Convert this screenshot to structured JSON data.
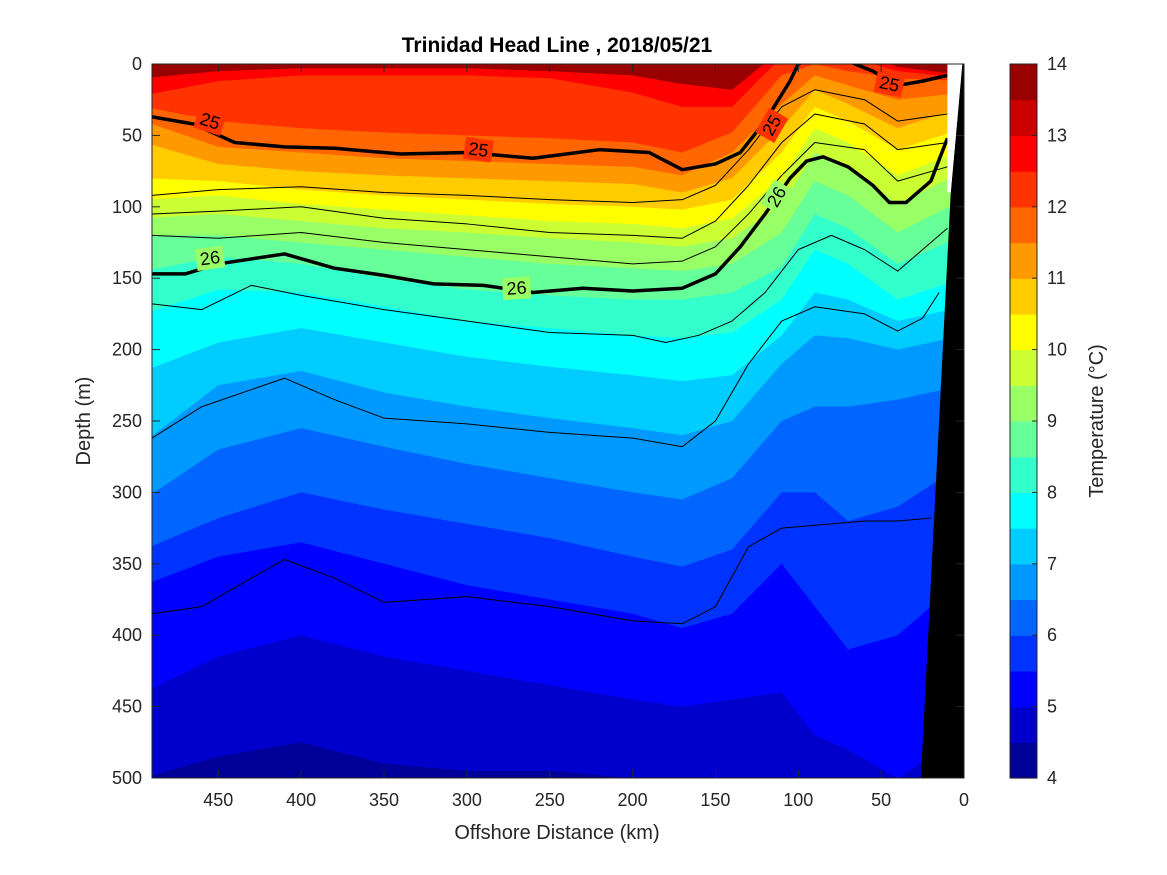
{
  "chart_data": {
    "type": "contour",
    "title": "Trinidad Head Line , 2018/05/21",
    "xlabel": "Offshore Distance (km)",
    "ylabel": "Depth (m)",
    "xlim": [
      490,
      0
    ],
    "ylim": [
      0,
      500
    ],
    "x_reversed": true,
    "y_reversed": true,
    "xticks": [
      "450",
      "400",
      "350",
      "300",
      "250",
      "200",
      "150",
      "100",
      "50",
      "0"
    ],
    "yticks": [
      "0",
      "50",
      "100",
      "150",
      "200",
      "250",
      "300",
      "350",
      "400",
      "450",
      "500"
    ],
    "colorbar": {
      "label": "Temperature (°C)",
      "ticks": [
        "4",
        "5",
        "6",
        "7",
        "8",
        "9",
        "10",
        "11",
        "12",
        "13",
        "14"
      ],
      "range": [
        4,
        14
      ],
      "colormap": "jet"
    },
    "isotherm_depths": {
      "x": [
        490,
        450,
        400,
        350,
        300,
        250,
        200,
        170,
        140,
        110,
        90,
        70,
        40,
        15
      ],
      "13.0": [
        10,
        5,
        3,
        3,
        3,
        5,
        8,
        14,
        18,
        -10,
        -10,
        -10,
        2,
        8
      ],
      "12.5": [
        22,
        12,
        8,
        8,
        8,
        10,
        20,
        30,
        30,
        -5,
        -8,
        -5,
        5,
        10
      ],
      "12.0": [
        30,
        40,
        45,
        48,
        50,
        52,
        55,
        62,
        48,
        8,
        0,
        5,
        10,
        12
      ],
      "11.5": [
        40,
        58,
        62,
        66,
        68,
        70,
        72,
        78,
        62,
        28,
        8,
        15,
        25,
        20
      ],
      "11.0": [
        55,
        70,
        75,
        78,
        80,
        82,
        84,
        90,
        80,
        45,
        18,
        28,
        45,
        30
      ],
      "10.5": [
        80,
        82,
        88,
        92,
        95,
        98,
        100,
        102,
        95,
        62,
        30,
        40,
        60,
        45
      ],
      "10.0": [
        95,
        92,
        98,
        102,
        106,
        110,
        112,
        115,
        108,
        80,
        45,
        55,
        78,
        60
      ],
      "9.5": [
        108,
        105,
        110,
        115,
        118,
        122,
        125,
        128,
        122,
        98,
        62,
        72,
        98,
        75
      ],
      "9.0": [
        120,
        120,
        125,
        130,
        135,
        140,
        143,
        145,
        140,
        118,
        82,
        92,
        118,
        95
      ],
      "8.5": [
        145,
        135,
        140,
        150,
        158,
        162,
        165,
        165,
        160,
        142,
        105,
        115,
        140,
        120
      ],
      "8.0": [
        175,
        158,
        160,
        170,
        180,
        185,
        190,
        192,
        188,
        165,
        130,
        140,
        165,
        150
      ],
      "7.5": [
        215,
        195,
        185,
        195,
        205,
        212,
        218,
        222,
        218,
        190,
        160,
        165,
        180,
        170
      ],
      "7.0": [
        265,
        225,
        215,
        230,
        240,
        248,
        255,
        260,
        250,
        210,
        190,
        192,
        200,
        190
      ],
      "6.5": [
        305,
        270,
        255,
        268,
        280,
        290,
        300,
        305,
        290,
        250,
        240,
        240,
        235,
        225
      ],
      "6.0": [
        340,
        318,
        300,
        312,
        322,
        332,
        345,
        352,
        340,
        300,
        300,
        320,
        310,
        280
      ],
      "5.5": [
        365,
        345,
        335,
        350,
        365,
        375,
        385,
        395,
        385,
        350,
        380,
        410,
        400,
        360
      ],
      "5.0": [
        440,
        415,
        400,
        415,
        425,
        435,
        445,
        450,
        445,
        440,
        470,
        480,
        500,
        470
      ],
      "4.5": [
        500,
        485,
        475,
        490,
        495,
        495,
        500,
        505,
        505,
        505,
        505,
        505,
        505,
        505
      ]
    },
    "density_contours": {
      "lines": [
        {
          "label": "25",
          "bold": true,
          "x": [
            490,
            465,
            440,
            410,
            380,
            340,
            300,
            260,
            220,
            190,
            170,
            150,
            135,
            120,
            105,
            100,
            90,
            70,
            55,
            40,
            25,
            10
          ],
          "y": [
            37,
            42,
            55,
            58,
            59,
            63,
            62,
            66,
            60,
            62,
            74,
            70,
            62,
            40,
            12,
            0,
            -5,
            -2,
            5,
            15,
            12,
            8
          ]
        },
        {
          "label": "26",
          "bold": true,
          "x": [
            490,
            470,
            450,
            410,
            380,
            350,
            320,
            290,
            260,
            230,
            200,
            170,
            150,
            135,
            120,
            105,
            95,
            85,
            70,
            55,
            45,
            35,
            20,
            10
          ],
          "y": [
            147,
            147,
            140,
            133,
            143,
            148,
            154,
            155,
            160,
            157,
            159,
            157,
            147,
            128,
            105,
            80,
            68,
            65,
            72,
            85,
            97,
            97,
            82,
            52
          ]
        },
        {
          "label": "",
          "bold": false,
          "x": [
            490,
            450,
            400,
            350,
            300,
            250,
            200,
            170,
            150,
            130,
            110,
            90,
            60,
            40,
            10
          ],
          "y": [
            92,
            88,
            86,
            90,
            92,
            95,
            97,
            95,
            85,
            60,
            30,
            18,
            25,
            40,
            35
          ]
        },
        {
          "label": "",
          "bold": false,
          "x": [
            490,
            450,
            400,
            350,
            300,
            250,
            200,
            170,
            150,
            130,
            110,
            90,
            60,
            40,
            10
          ],
          "y": [
            105,
            103,
            100,
            108,
            112,
            118,
            120,
            122,
            110,
            85,
            55,
            35,
            42,
            60,
            55
          ]
        },
        {
          "label": "",
          "bold": false,
          "x": [
            490,
            450,
            400,
            350,
            300,
            250,
            200,
            170,
            150,
            130,
            110,
            90,
            60,
            40,
            10
          ],
          "y": [
            120,
            122,
            118,
            125,
            130,
            135,
            140,
            138,
            128,
            105,
            78,
            55,
            60,
            82,
            72
          ]
        },
        {
          "label": "",
          "bold": false,
          "x": [
            490,
            460,
            430,
            400,
            350,
            300,
            250,
            200,
            180,
            160,
            140,
            120,
            100,
            80,
            60,
            40,
            20,
            10
          ],
          "y": [
            168,
            172,
            155,
            162,
            172,
            180,
            188,
            190,
            195,
            190,
            180,
            160,
            130,
            120,
            130,
            145,
            125,
            115
          ]
        },
        {
          "label": "",
          "bold": false,
          "x": [
            490,
            460,
            430,
            410,
            380,
            350,
            300,
            250,
            200,
            170,
            150,
            130,
            110,
            90,
            60,
            40,
            25,
            15
          ],
          "y": [
            262,
            240,
            228,
            220,
            235,
            248,
            252,
            258,
            262,
            268,
            250,
            210,
            180,
            170,
            175,
            187,
            178,
            160
          ]
        },
        {
          "label": "",
          "bold": false,
          "x": [
            490,
            460,
            430,
            410,
            380,
            350,
            300,
            250,
            200,
            170,
            150,
            130,
            110,
            80,
            60,
            40,
            20
          ],
          "y": [
            385,
            380,
            360,
            347,
            360,
            377,
            373,
            380,
            390,
            392,
            380,
            338,
            325,
            322,
            320,
            320,
            318
          ]
        }
      ]
    },
    "bathymetry_fill": "#000000"
  }
}
